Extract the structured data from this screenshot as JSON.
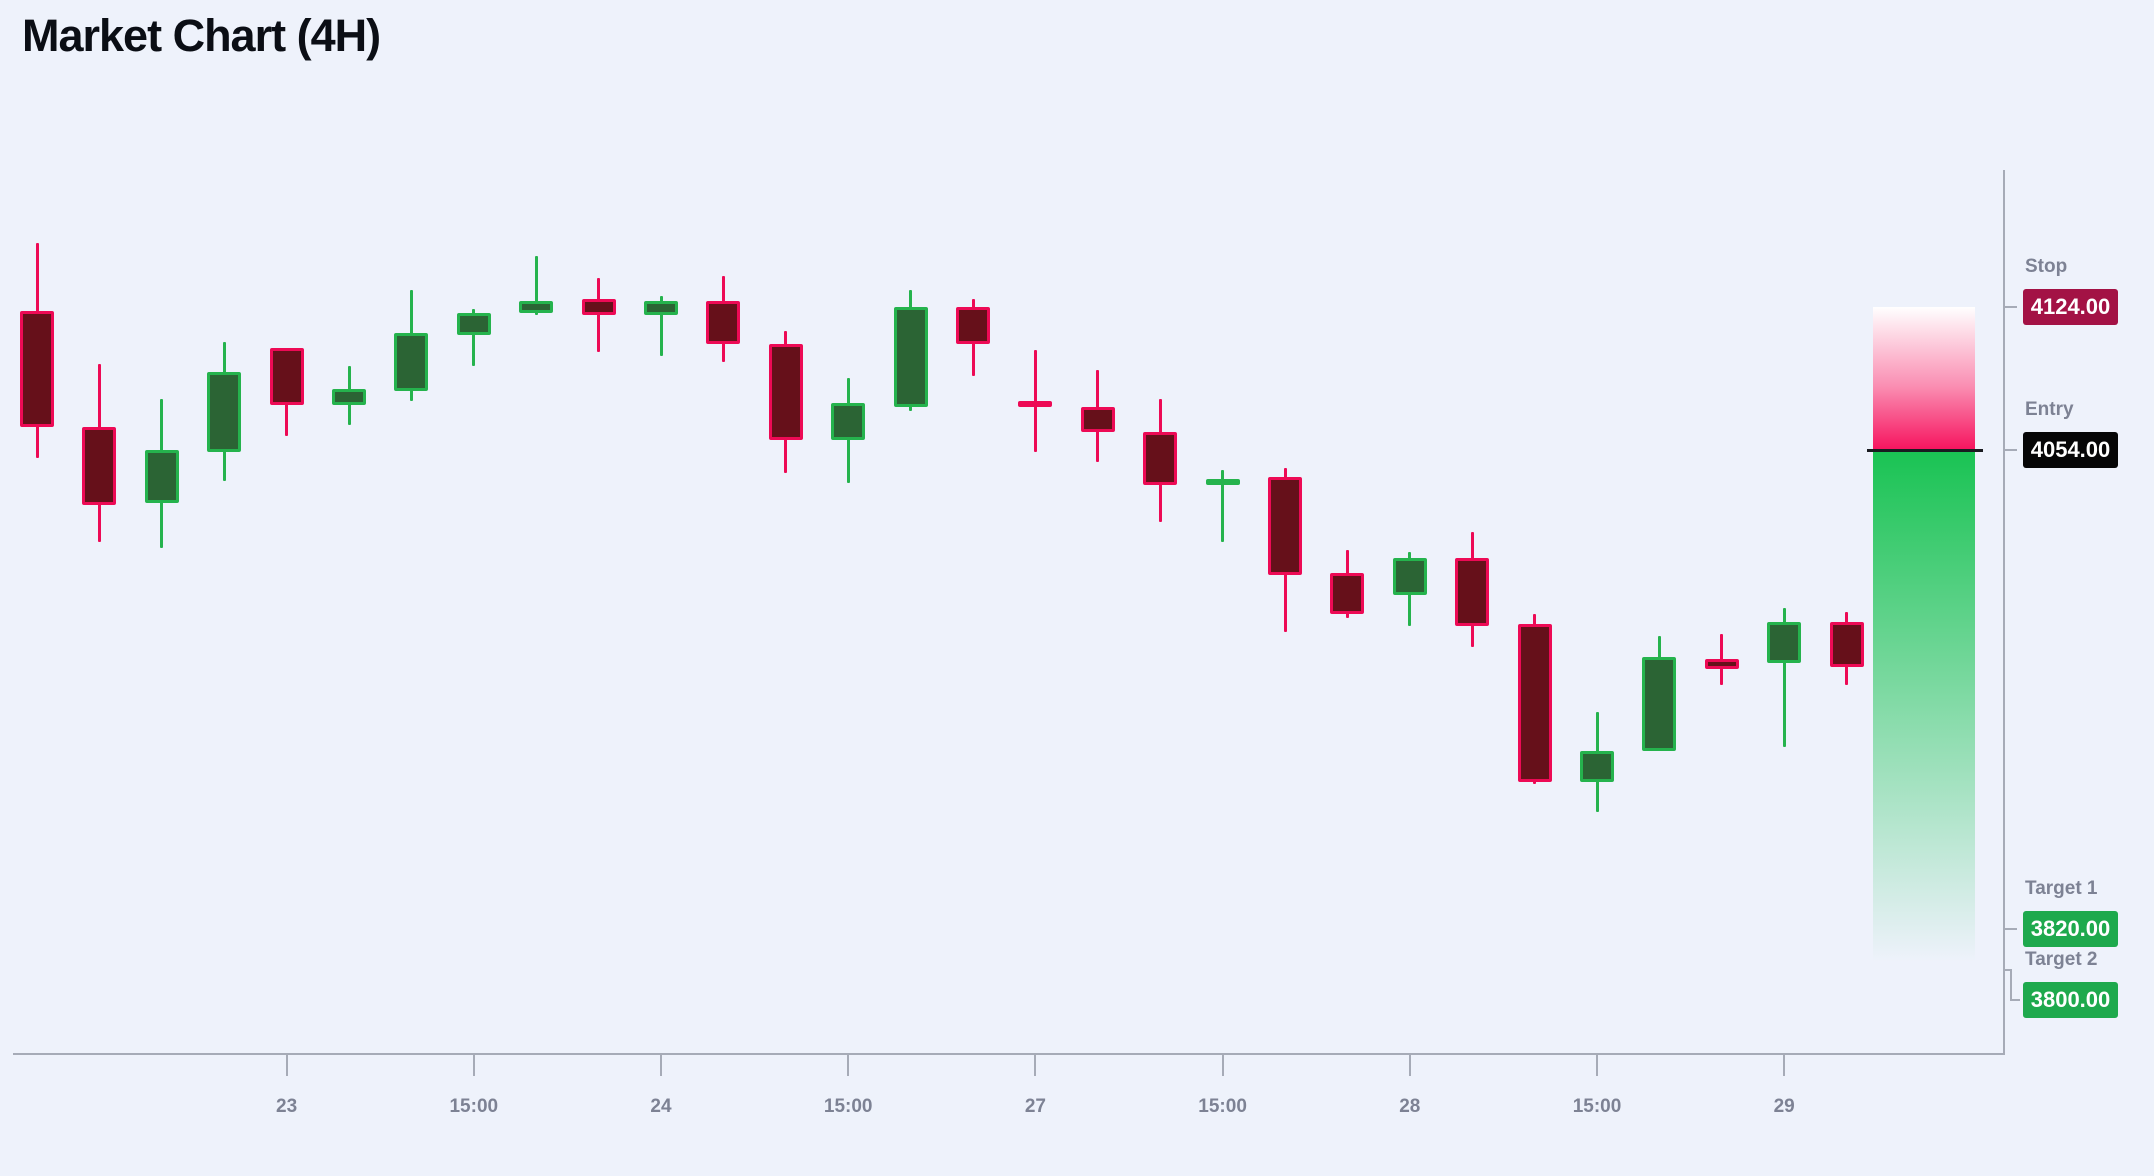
{
  "title": "Market Chart (4H)",
  "chart_data": {
    "type": "candlestick",
    "title": "Market Chart (4H)",
    "timeframe": "4H",
    "x_axis": {
      "labels": [
        "23",
        "15:00",
        "24",
        "15:00",
        "27",
        "15:00",
        "28",
        "15:00",
        "29"
      ],
      "first_tick_candle_index": 4,
      "candles_per_tick": 3
    },
    "y_axis": {
      "visible_price_range": [
        3877,
        4155
      ],
      "gridlines": false
    },
    "legend_position": "none",
    "candles": [
      {
        "open": 4122,
        "high": 4155,
        "low": 4050,
        "close": 4065
      },
      {
        "open": 4065,
        "high": 4096,
        "low": 4009,
        "close": 4027
      },
      {
        "open": 4028,
        "high": 4079,
        "low": 4006,
        "close": 4054
      },
      {
        "open": 4053,
        "high": 4107,
        "low": 4039,
        "close": 4092
      },
      {
        "open": 4104,
        "high": 4104,
        "low": 4061,
        "close": 4076
      },
      {
        "open": 4076,
        "high": 4095,
        "low": 4066,
        "close": 4084
      },
      {
        "open": 4083,
        "high": 4132,
        "low": 4078,
        "close": 4111
      },
      {
        "open": 4110,
        "high": 4123,
        "low": 4095,
        "close": 4121
      },
      {
        "open": 4121,
        "high": 4149,
        "low": 4120,
        "close": 4127
      },
      {
        "open": 4128,
        "high": 4138,
        "low": 4102,
        "close": 4120
      },
      {
        "open": 4120,
        "high": 4129,
        "low": 4100,
        "close": 4127
      },
      {
        "open": 4127,
        "high": 4139,
        "low": 4097,
        "close": 4106
      },
      {
        "open": 4106,
        "high": 4112,
        "low": 4043,
        "close": 4059
      },
      {
        "open": 4059,
        "high": 4089,
        "low": 4038,
        "close": 4077
      },
      {
        "open": 4075,
        "high": 4132,
        "low": 4073,
        "close": 4124
      },
      {
        "open": 4124,
        "high": 4128,
        "low": 4090,
        "close": 4106
      },
      {
        "open": 4078,
        "high": 4103,
        "low": 4053,
        "close": 4075
      },
      {
        "open": 4075,
        "high": 4093,
        "low": 4048,
        "close": 4063
      },
      {
        "open": 4063,
        "high": 4079,
        "low": 4019,
        "close": 4037
      },
      {
        "open": 4037,
        "high": 4044,
        "low": 4009,
        "close": 4040
      },
      {
        "open": 4041,
        "high": 4045,
        "low": 3965,
        "close": 3993
      },
      {
        "open": 3994,
        "high": 4005,
        "low": 3972,
        "close": 3974
      },
      {
        "open": 3983,
        "high": 4004,
        "low": 3968,
        "close": 4001
      },
      {
        "open": 4001,
        "high": 4014,
        "low": 3958,
        "close": 3968
      },
      {
        "open": 3969,
        "high": 3974,
        "low": 3891,
        "close": 3892
      },
      {
        "open": 3892,
        "high": 3926,
        "low": 3877,
        "close": 3907
      },
      {
        "open": 3907,
        "high": 3963,
        "low": 3907,
        "close": 3953
      },
      {
        "open": 3952,
        "high": 3964,
        "low": 3939,
        "close": 3947
      },
      {
        "open": 3950,
        "high": 3977,
        "low": 3909,
        "close": 3970
      },
      {
        "open": 3970,
        "high": 3975,
        "low": 3939,
        "close": 3948
      }
    ],
    "levels": {
      "stop": {
        "label": "Stop",
        "price": 4124,
        "display": "4124.00"
      },
      "entry": {
        "label": "Entry",
        "price": 4054,
        "display": "4054.00"
      },
      "target1": {
        "label": "Target 1",
        "price": 3820,
        "display": "3820.00"
      },
      "target2": {
        "label": "Target 2",
        "price": 3800,
        "display": "3800.00"
      }
    },
    "colors": {
      "background": "#eef2fb",
      "bullish_fill": "#2b6434",
      "bullish_border": "#25b34d",
      "bearish_fill": "#66101a",
      "bearish_border": "#ed0a55",
      "risk_zone": "#f6135e",
      "reward_zone": "#19c353",
      "entry_line": "#191b20",
      "stop_badge": "#a31245",
      "entry_badge": "#060607",
      "target_badge": "#1ea94d",
      "label_text": "#7d8294",
      "axis": "#a6abb7",
      "title_text": "#0b0e15"
    }
  }
}
